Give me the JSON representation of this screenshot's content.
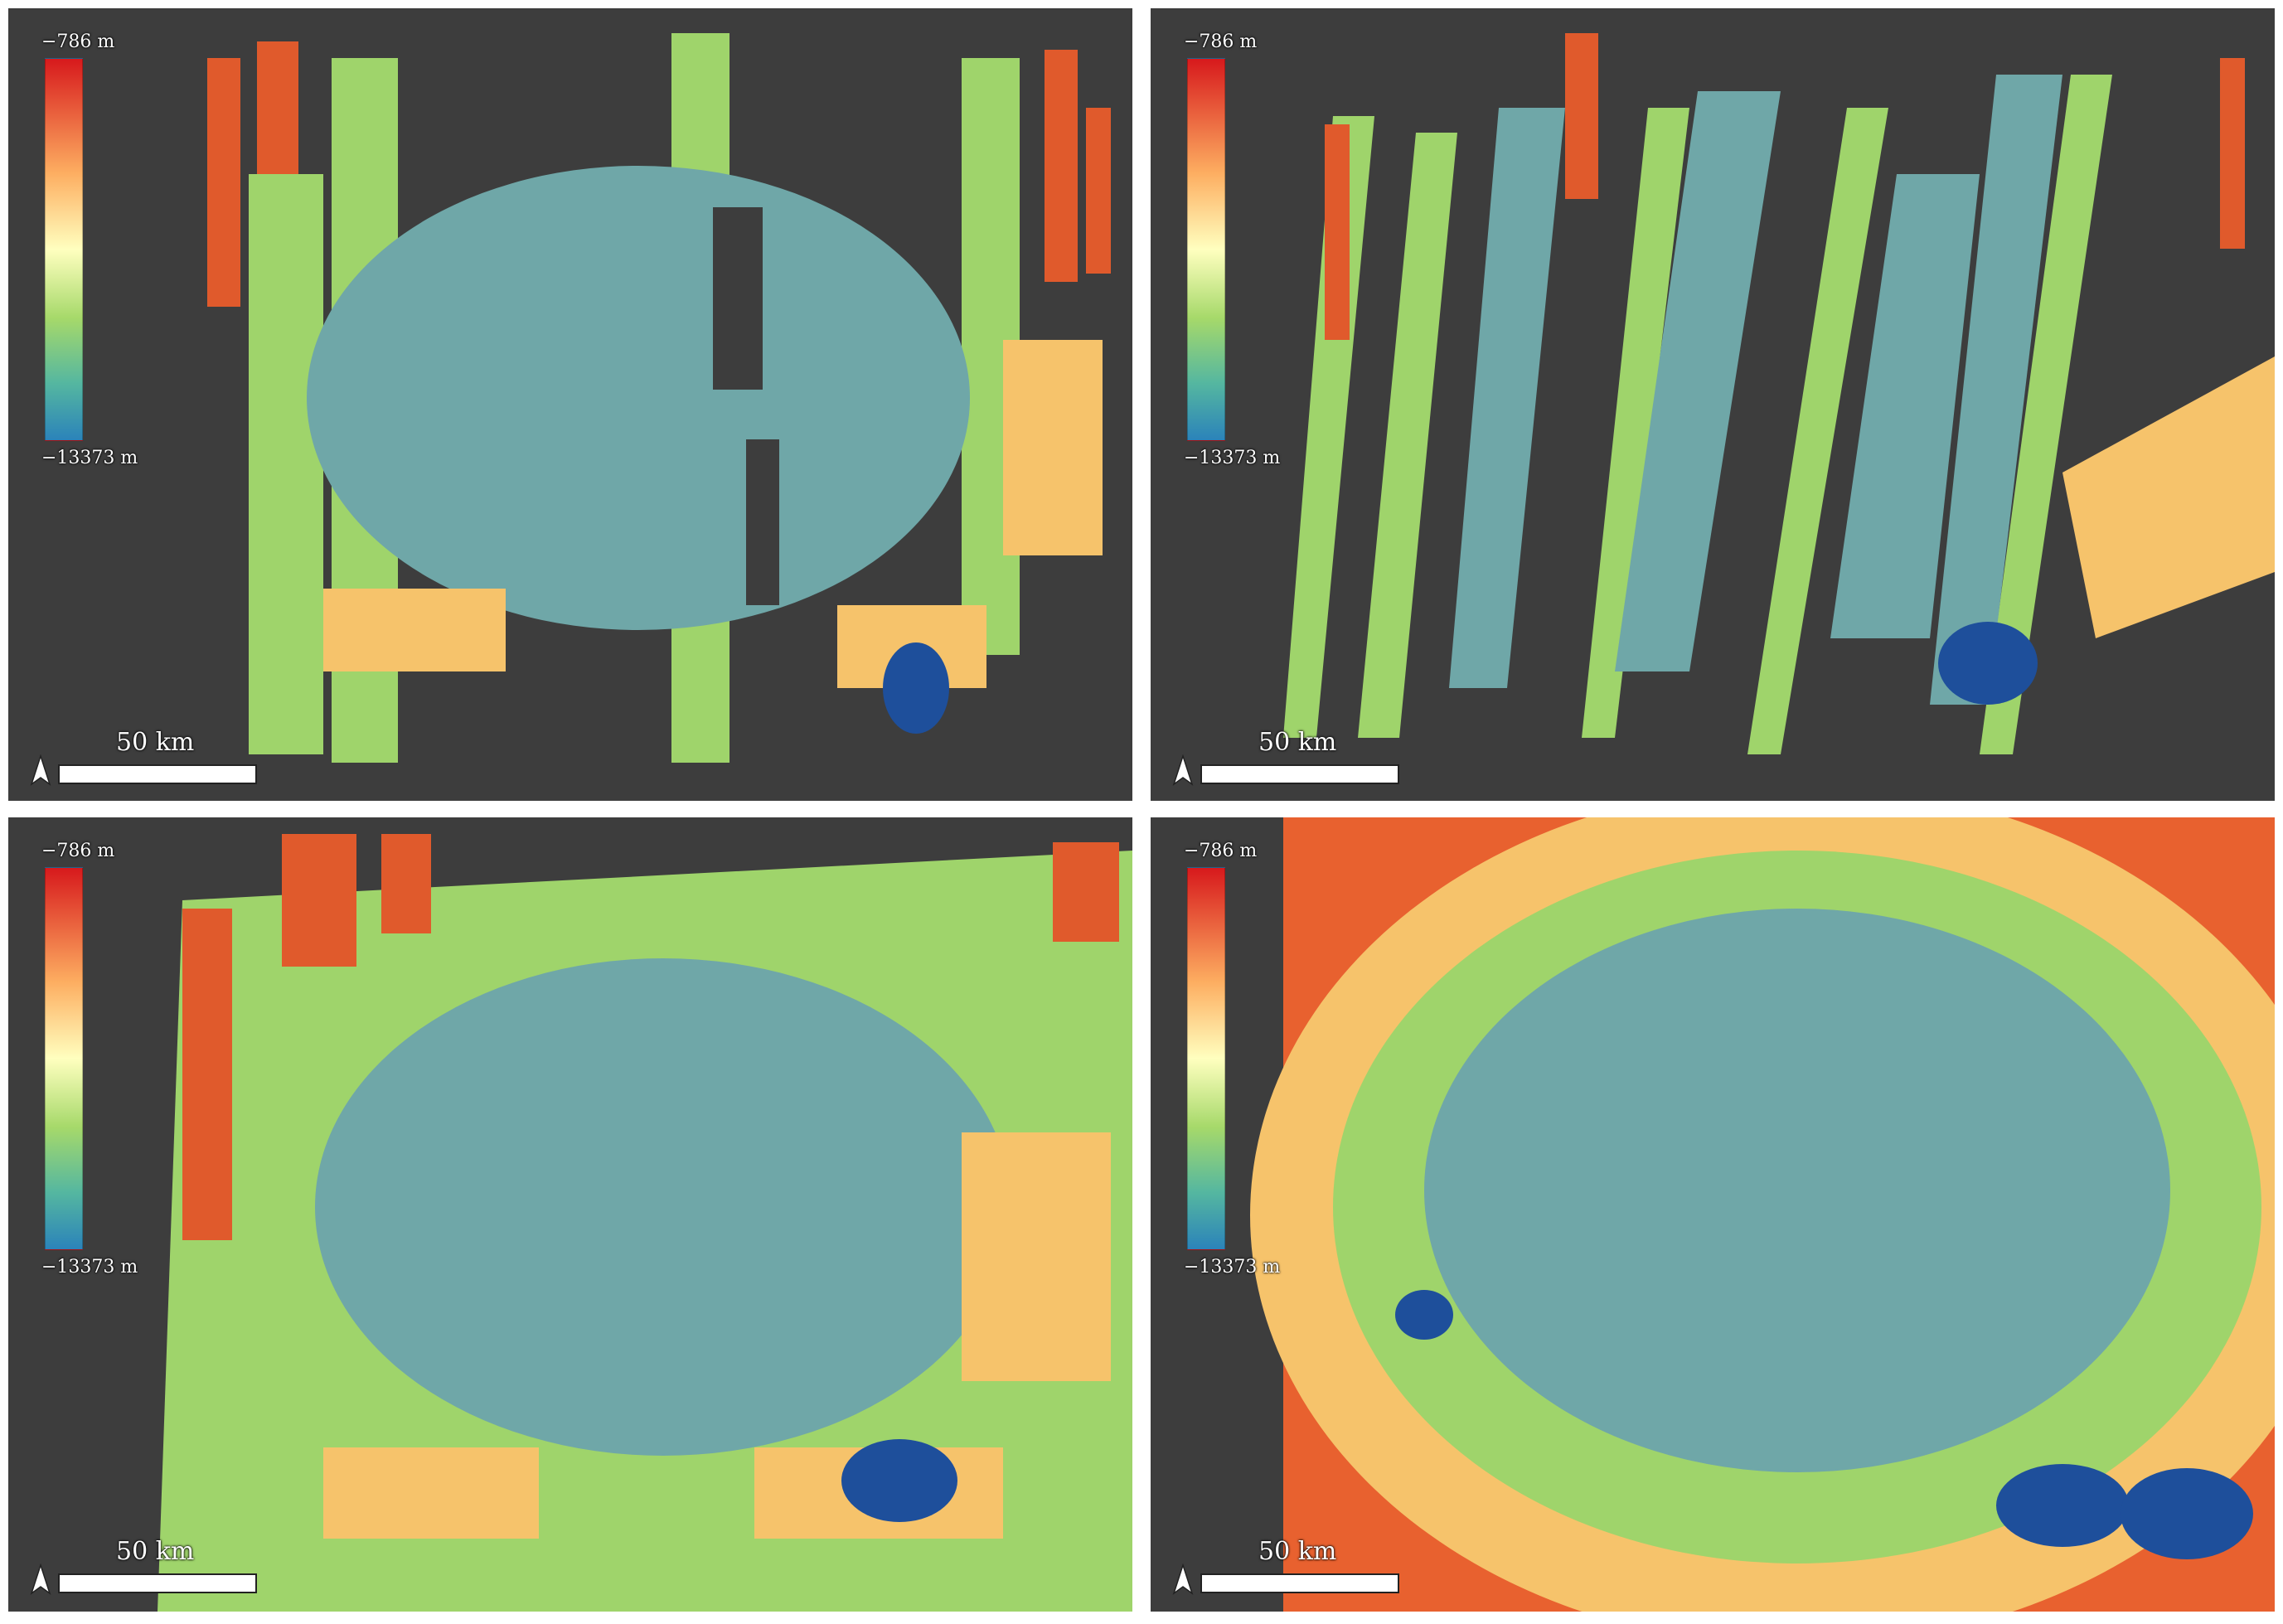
{
  "figure": {
    "panels": [
      {
        "id": "top-left",
        "colorbar_max": "−786 m",
        "colorbar_min": "−13373 m",
        "scale_bar": "50 km"
      },
      {
        "id": "top-right",
        "colorbar_max": "−786 m",
        "colorbar_min": "−13373 m",
        "scale_bar": "50 km"
      },
      {
        "id": "bottom-left",
        "colorbar_max": "−786 m",
        "colorbar_min": "−13373 m",
        "scale_bar": "50 km"
      },
      {
        "id": "bottom-right",
        "colorbar_max": "−786 m",
        "colorbar_min": "−13373 m",
        "scale_bar": "50 km"
      }
    ],
    "colormap": [
      "#d7191c",
      "#fdae61",
      "#ffffbf",
      "#a6d96a",
      "#55b7a0",
      "#2b83ba"
    ],
    "icons": {
      "north_arrow": "north-arrow-icon"
    }
  }
}
